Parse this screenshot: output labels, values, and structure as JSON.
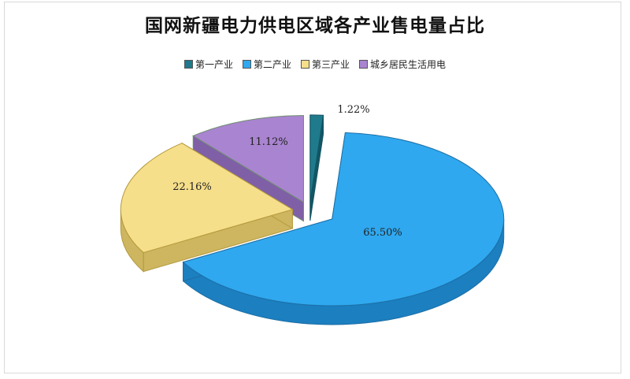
{
  "chart_data": {
    "type": "pie",
    "title": "国网新疆电力供电区域各产业售电量占比",
    "legend_position": "top",
    "style": "3d-exploded",
    "categories": [
      "第一产业",
      "第二产业",
      "第三产业",
      "城乡居民生活用电"
    ],
    "values": [
      1.22,
      65.5,
      22.16,
      11.12
    ],
    "labels": [
      "1.22%",
      "65.50%",
      "22.16%",
      "11.12%"
    ],
    "colors": [
      "#1f7a8c",
      "#2fa8ef",
      "#f6df8a",
      "#a984d0"
    ],
    "side_colors": [
      "#135563",
      "#1b7fc0",
      "#cdb65f",
      "#7f60a6"
    ],
    "edge_colors": [
      "#135563",
      "#1d6fa5",
      "#b59a3e",
      "#6f8f6f"
    ]
  }
}
